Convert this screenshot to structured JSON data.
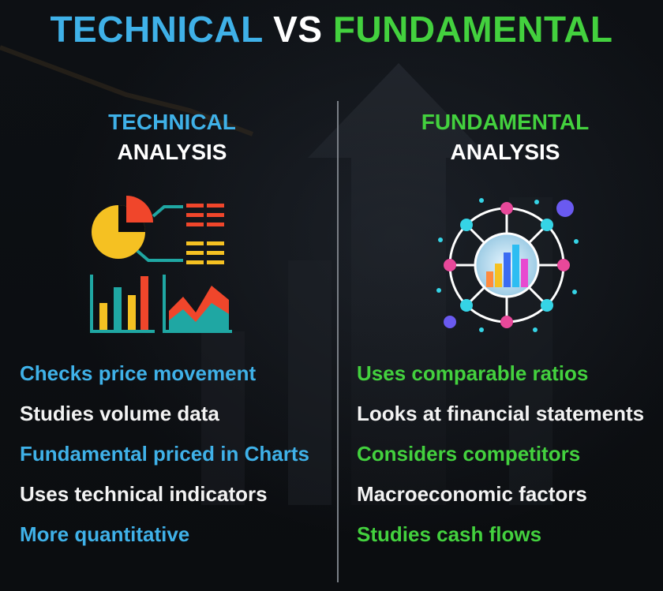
{
  "title": {
    "part1": "TECHNICAL",
    "part2": "VS",
    "part3": "FUNDAMENTAL"
  },
  "technical": {
    "heading_line1": "TECHNICAL",
    "heading_line2": "ANALYSIS",
    "icon": "charts-dashboard-icon",
    "items": [
      "Checks price movement",
      "Studies volume data",
      "Fundamental priced in Charts",
      "Uses technical indicators",
      "More quantitative"
    ]
  },
  "fundamental": {
    "heading_line1": "FUNDAMENTAL",
    "heading_line2": "ANALYSIS",
    "icon": "network-bar-chart-icon",
    "items": [
      "Uses comparable ratios",
      "Looks at financial statements",
      "Considers competitors",
      "Macroeconomic factors",
      "Studies cash flows"
    ]
  },
  "colors": {
    "technical_accent": "#3fb1e8",
    "fundamental_accent": "#43d13e",
    "text_white": "#ffffff",
    "background": "#0b0d10"
  }
}
